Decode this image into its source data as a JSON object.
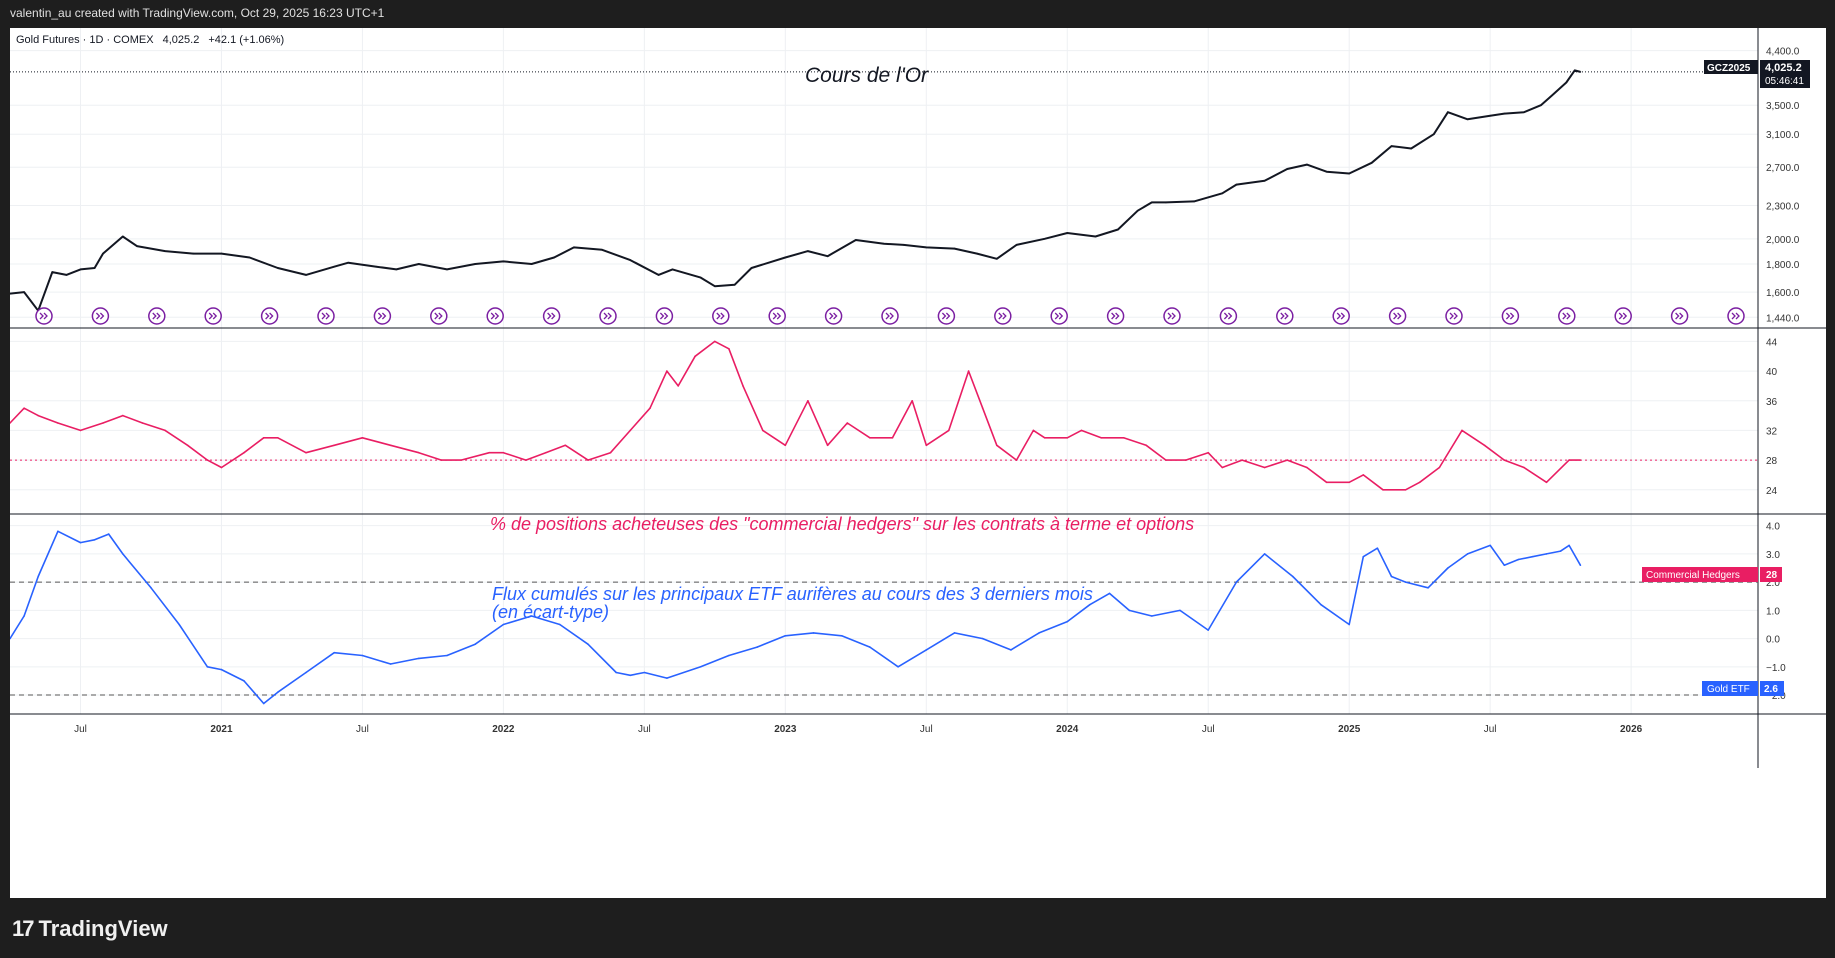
{
  "header": {
    "credit": "valentin_au created with TradingView.com, Oct 29, 2025 16:23 UTC+1"
  },
  "legend": {
    "symbol_line": "Gold Futures · 1D · COMEX",
    "price": "4,025.2",
    "change": "+42.1 (+1.06%)"
  },
  "footer": {
    "brand": "TradingView",
    "logo_glyph": "17"
  },
  "colors": {
    "price": "#131722",
    "hedgers": "#e91e63",
    "etf": "#2962ff",
    "grid": "#eef0f3",
    "axis_text": "#333333"
  },
  "chart_data": [
    {
      "type": "line",
      "title": "Cours de l'Or",
      "scale": "log",
      "y_ticks": [
        "4,400.0",
        "3,500.0",
        "3,100.0",
        "2,700.0",
        "2,300.0",
        "2,000.0",
        "1,800.0",
        "1,600.0",
        "1,440.0"
      ],
      "y_tick_values": [
        4400,
        3500,
        3100,
        2700,
        2300,
        2000,
        1800,
        1600,
        1440
      ],
      "ylim": [
        1400,
        4600
      ],
      "last_label": {
        "symbol": "GCZ2025",
        "value": "4,025.2",
        "countdown": "05:46:41",
        "value_num": 4025.2
      },
      "events_count": 31,
      "series": [
        {
          "name": "Gold Futures",
          "x": [
            2020.25,
            2020.3,
            2020.35,
            2020.4,
            2020.45,
            2020.5,
            2020.55,
            2020.58,
            2020.65,
            2020.7,
            2020.8,
            2020.9,
            2021.0,
            2021.1,
            2021.2,
            2021.3,
            2021.4,
            2021.45,
            2021.55,
            2021.62,
            2021.7,
            2021.8,
            2021.9,
            2022.0,
            2022.1,
            2022.18,
            2022.25,
            2022.35,
            2022.45,
            2022.55,
            2022.6,
            2022.7,
            2022.75,
            2022.82,
            2022.88,
            2023.0,
            2023.08,
            2023.15,
            2023.25,
            2023.35,
            2023.42,
            2023.5,
            2023.6,
            2023.68,
            2023.75,
            2023.82,
            2023.92,
            2024.0,
            2024.1,
            2024.18,
            2024.25,
            2024.3,
            2024.35,
            2024.45,
            2024.55,
            2024.6,
            2024.7,
            2024.78,
            2024.85,
            2024.92,
            2025.0,
            2025.08,
            2025.15,
            2025.22,
            2025.3,
            2025.35,
            2025.42,
            2025.5,
            2025.55,
            2025.62,
            2025.68,
            2025.72,
            2025.77,
            2025.8,
            2025.82
          ],
          "values": [
            1590,
            1600,
            1480,
            1740,
            1720,
            1760,
            1770,
            1880,
            2020,
            1940,
            1900,
            1880,
            1880,
            1850,
            1770,
            1720,
            1780,
            1810,
            1780,
            1760,
            1800,
            1760,
            1800,
            1820,
            1800,
            1850,
            1930,
            1910,
            1830,
            1720,
            1760,
            1700,
            1640,
            1650,
            1770,
            1850,
            1900,
            1860,
            1990,
            1960,
            1950,
            1930,
            1920,
            1880,
            1840,
            1950,
            2000,
            2050,
            2020,
            2080,
            2250,
            2330,
            2330,
            2340,
            2420,
            2510,
            2550,
            2680,
            2730,
            2650,
            2630,
            2750,
            2950,
            2920,
            3100,
            3400,
            3300,
            3350,
            3380,
            3400,
            3500,
            3650,
            3850,
            4050,
            4025
          ]
        }
      ]
    },
    {
      "type": "line",
      "title": "% de positions acheteuses des \"commercial hedgers\" sur les contrats à terme et options",
      "y_ticks": [
        "44",
        "40",
        "36",
        "32",
        "28",
        "24"
      ],
      "y_tick_values": [
        44,
        40,
        36,
        32,
        28,
        24
      ],
      "ylim": [
        21,
        45
      ],
      "reference_line": 28,
      "last_label": {
        "name": "Commercial Hedgers",
        "value": "28",
        "value_num": 28
      },
      "series": [
        {
          "name": "Commercial Hedgers",
          "x": [
            2020.25,
            2020.3,
            2020.35,
            2020.42,
            2020.5,
            2020.58,
            2020.65,
            2020.72,
            2020.8,
            2020.88,
            2020.95,
            2021.0,
            2021.08,
            2021.15,
            2021.2,
            2021.3,
            2021.4,
            2021.5,
            2021.6,
            2021.7,
            2021.78,
            2021.85,
            2021.95,
            2022.0,
            2022.08,
            2022.15,
            2022.22,
            2022.3,
            2022.38,
            2022.45,
            2022.52,
            2022.58,
            2022.62,
            2022.68,
            2022.75,
            2022.8,
            2022.85,
            2022.92,
            2023.0,
            2023.08,
            2023.15,
            2023.22,
            2023.3,
            2023.38,
            2023.45,
            2023.5,
            2023.58,
            2023.65,
            2023.7,
            2023.75,
            2023.82,
            2023.88,
            2023.92,
            2024.0,
            2024.05,
            2024.12,
            2024.2,
            2024.28,
            2024.35,
            2024.42,
            2024.5,
            2024.55,
            2024.62,
            2024.7,
            2024.78,
            2024.85,
            2024.92,
            2025.0,
            2025.05,
            2025.12,
            2025.2,
            2025.25,
            2025.32,
            2025.4,
            2025.48,
            2025.55,
            2025.62,
            2025.7,
            2025.78,
            2025.82
          ],
          "values": [
            33,
            35,
            34,
            33,
            32,
            33,
            34,
            33,
            32,
            30,
            28,
            27,
            29,
            31,
            31,
            29,
            30,
            31,
            30,
            29,
            28,
            28,
            29,
            29,
            28,
            29,
            30,
            28,
            29,
            32,
            35,
            40,
            38,
            42,
            44,
            43,
            38,
            32,
            30,
            36,
            30,
            33,
            31,
            31,
            36,
            30,
            32,
            40,
            35,
            30,
            28,
            32,
            31,
            31,
            32,
            31,
            31,
            30,
            28,
            28,
            29,
            27,
            28,
            27,
            28,
            27,
            25,
            25,
            26,
            24,
            24,
            25,
            27,
            32,
            30,
            28,
            27,
            25,
            28,
            28
          ]
        }
      ]
    },
    {
      "type": "line",
      "title": "Flux cumulés sur les principaux ETF aurifères au cours des 3 derniers mois",
      "subtitle": "(en écart-type)",
      "y_ticks": [
        "4.0",
        "3.0",
        "2.0",
        "1.0",
        "0.0",
        "−1.0",
        "−2.0"
      ],
      "y_tick_values": [
        4,
        3,
        2,
        1,
        0,
        -1,
        -2
      ],
      "ylim": [
        -2.6,
        4.2
      ],
      "reference_lines": [
        2,
        -2
      ],
      "last_label": {
        "name": "Gold ETF",
        "value": "2.6",
        "value_num": 2.6
      },
      "series": [
        {
          "name": "Gold ETF",
          "x": [
            2020.25,
            2020.3,
            2020.35,
            2020.42,
            2020.5,
            2020.55,
            2020.6,
            2020.65,
            2020.75,
            2020.85,
            2020.95,
            2021.0,
            2021.08,
            2021.15,
            2021.2,
            2021.3,
            2021.4,
            2021.5,
            2021.6,
            2021.7,
            2021.8,
            2021.9,
            2022.0,
            2022.1,
            2022.2,
            2022.3,
            2022.4,
            2022.45,
            2022.5,
            2022.58,
            2022.7,
            2022.8,
            2022.9,
            2023.0,
            2023.1,
            2023.2,
            2023.3,
            2023.4,
            2023.5,
            2023.6,
            2023.7,
            2023.8,
            2023.9,
            2024.0,
            2024.08,
            2024.15,
            2024.22,
            2024.3,
            2024.4,
            2024.5,
            2024.6,
            2024.7,
            2024.8,
            2024.9,
            2025.0,
            2025.05,
            2025.1,
            2025.15,
            2025.2,
            2025.28,
            2025.35,
            2025.42,
            2025.5,
            2025.55,
            2025.6,
            2025.65,
            2025.7,
            2025.75,
            2025.78,
            2025.82
          ],
          "values": [
            0.0,
            0.8,
            2.2,
            3.8,
            3.4,
            3.5,
            3.7,
            3.0,
            1.8,
            0.5,
            -1.0,
            -1.1,
            -1.5,
            -2.3,
            -1.9,
            -1.2,
            -0.5,
            -0.6,
            -0.9,
            -0.7,
            -0.6,
            -0.2,
            0.5,
            0.8,
            0.5,
            -0.2,
            -1.2,
            -1.3,
            -1.2,
            -1.4,
            -1.0,
            -0.6,
            -0.3,
            0.1,
            0.2,
            0.1,
            -0.3,
            -1.0,
            -0.4,
            0.2,
            0.0,
            -0.4,
            0.2,
            0.6,
            1.2,
            1.6,
            1.0,
            0.8,
            1.0,
            0.3,
            2.0,
            3.0,
            2.2,
            1.2,
            0.5,
            2.9,
            3.2,
            2.2,
            2.0,
            1.8,
            2.5,
            3.0,
            3.3,
            2.6,
            2.8,
            2.9,
            3.0,
            3.1,
            3.3,
            2.6
          ]
        }
      ]
    }
  ],
  "x_axis": {
    "labels": [
      "Jul",
      "2021",
      "Jul",
      "2022",
      "Jul",
      "2023",
      "Jul",
      "2024",
      "Jul",
      "2025",
      "Jul",
      "2026"
    ],
    "values": [
      2020.5,
      2021.0,
      2021.5,
      2022.0,
      2022.5,
      2023.0,
      2023.5,
      2024.0,
      2024.5,
      2025.0,
      2025.5,
      2026.0
    ],
    "range": [
      2020.25,
      2026.45
    ]
  }
}
